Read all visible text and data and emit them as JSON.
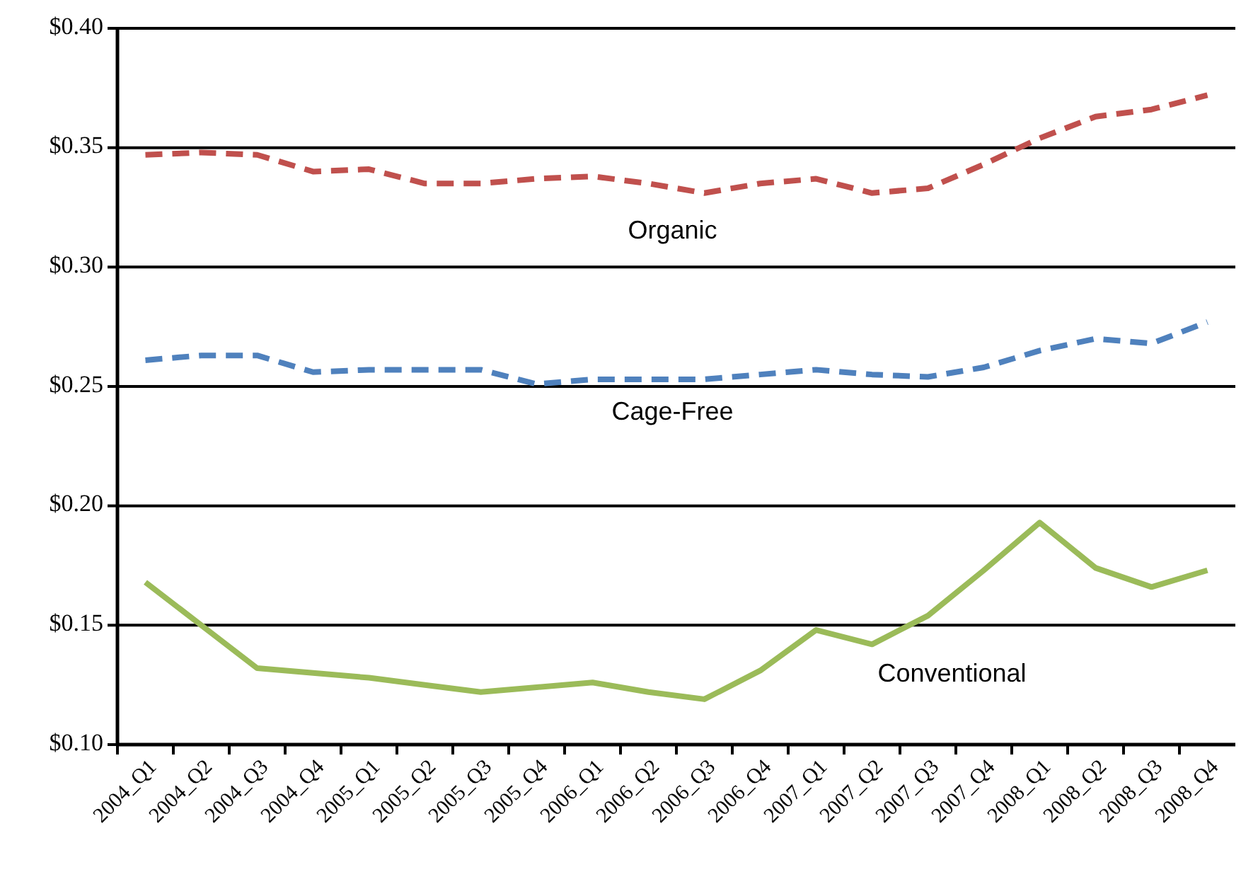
{
  "chart_data": {
    "type": "line",
    "categories": [
      "2004_Q1",
      "2004_Q2",
      "2004_Q3",
      "2004_Q4",
      "2005_Q1",
      "2005_Q2",
      "2005_Q3",
      "2005_Q4",
      "2006_Q1",
      "2006_Q2",
      "2006_Q3",
      "2006_Q4",
      "2007_Q1",
      "2007_Q2",
      "2007_Q3",
      "2007_Q4",
      "2008_Q1",
      "2008_Q2",
      "2008_Q3",
      "2008_Q4"
    ],
    "series": [
      {
        "name": "Organic",
        "color": "#c0504d",
        "line_style": "dashed",
        "values": [
          0.347,
          0.348,
          0.347,
          0.34,
          0.341,
          0.335,
          0.335,
          0.337,
          0.338,
          0.335,
          0.331,
          0.335,
          0.337,
          0.331,
          0.333,
          0.343,
          0.354,
          0.363,
          0.366,
          0.372
        ]
      },
      {
        "name": "Cage-Free",
        "color": "#4f81bd",
        "line_style": "dashed",
        "values": [
          0.261,
          0.263,
          0.263,
          0.256,
          0.257,
          0.257,
          0.257,
          0.251,
          0.253,
          0.253,
          0.253,
          0.255,
          0.257,
          0.255,
          0.254,
          0.258,
          0.265,
          0.27,
          0.268,
          0.277
        ]
      },
      {
        "name": "Conventional",
        "color": "#9bbb59",
        "line_style": "solid",
        "values": [
          0.168,
          0.15,
          0.132,
          0.13,
          0.128,
          0.125,
          0.122,
          0.124,
          0.126,
          0.122,
          0.119,
          0.131,
          0.148,
          0.142,
          0.154,
          0.173,
          0.193,
          0.174,
          0.166,
          0.173
        ]
      }
    ],
    "ylim": [
      0.1,
      0.4
    ],
    "yticks": [
      {
        "value": 0.1,
        "label": "$0.10"
      },
      {
        "value": 0.15,
        "label": "$0.15"
      },
      {
        "value": 0.2,
        "label": "$0.20"
      },
      {
        "value": 0.25,
        "label": "$0.25"
      },
      {
        "value": 0.3,
        "label": "$0.30"
      },
      {
        "value": 0.35,
        "label": "$0.35"
      },
      {
        "value": 0.4,
        "label": "$0.40"
      }
    ],
    "grid": "y",
    "marker": "none"
  }
}
